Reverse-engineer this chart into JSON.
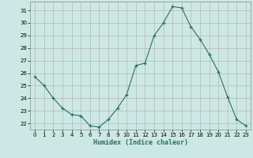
{
  "x": [
    0,
    1,
    2,
    3,
    4,
    5,
    6,
    7,
    8,
    9,
    10,
    11,
    12,
    13,
    14,
    15,
    16,
    17,
    18,
    19,
    20,
    21,
    22,
    23
  ],
  "y": [
    25.7,
    25.0,
    24.0,
    23.2,
    22.7,
    22.6,
    21.8,
    21.7,
    22.3,
    23.2,
    24.3,
    26.6,
    26.8,
    29.0,
    30.0,
    31.3,
    31.2,
    29.7,
    28.7,
    27.5,
    26.1,
    24.1,
    22.3,
    21.8
  ],
  "xlabel": "Humidex (Indice chaleur)",
  "xlim": [
    -0.5,
    23.5
  ],
  "ylim": [
    21.5,
    31.7
  ],
  "yticks": [
    22,
    23,
    24,
    25,
    26,
    27,
    28,
    29,
    30,
    31
  ],
  "xticks": [
    0,
    1,
    2,
    3,
    4,
    5,
    6,
    7,
    8,
    9,
    10,
    11,
    12,
    13,
    14,
    15,
    16,
    17,
    18,
    19,
    20,
    21,
    22,
    23
  ],
  "bg_color": "#cce8e4",
  "grid_color": "#b8b8aa",
  "line_color": "#2d6e62",
  "marker_color": "#2d6e62"
}
